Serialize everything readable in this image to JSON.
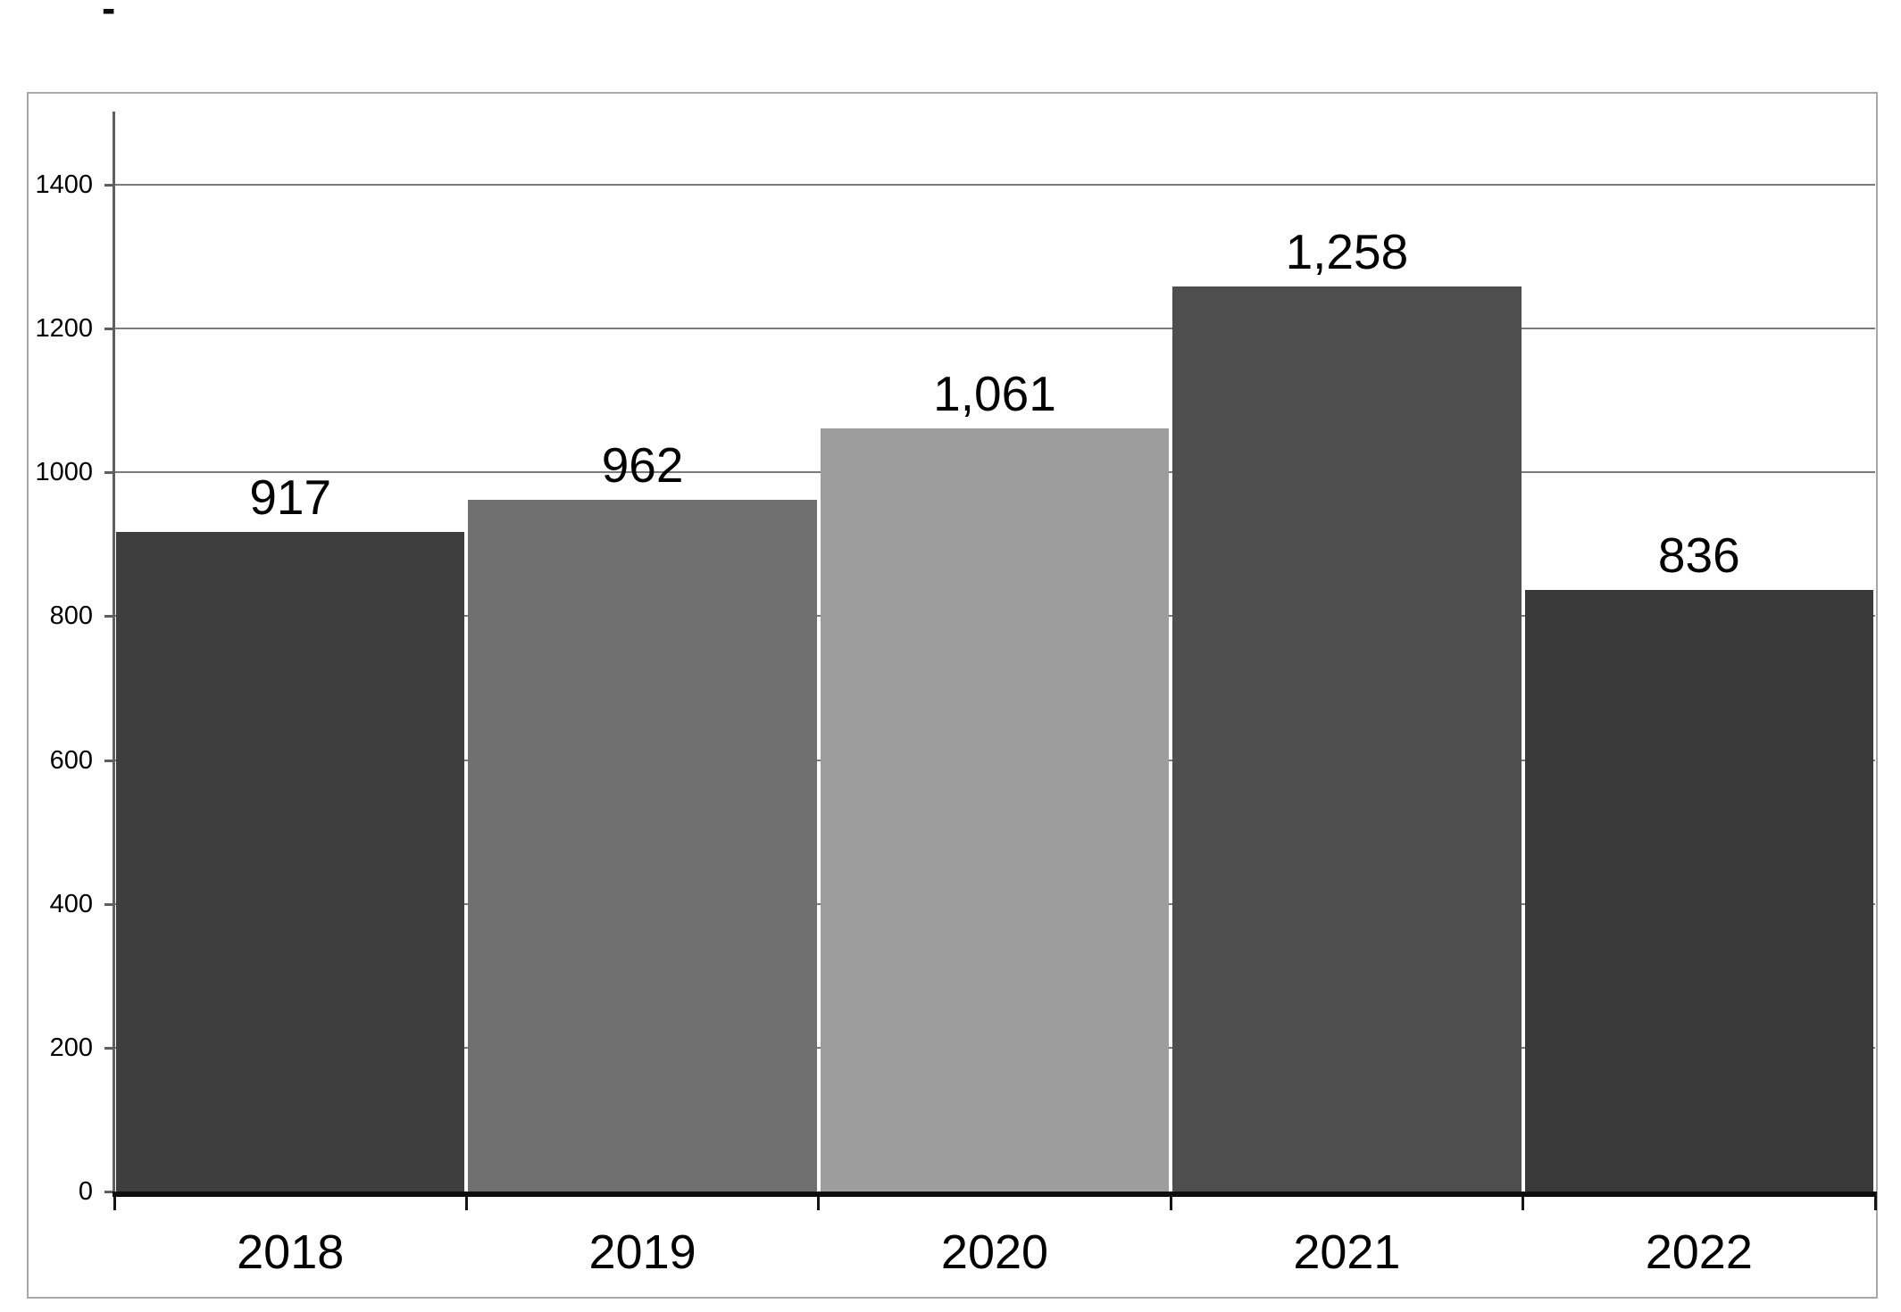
{
  "stray_mark": "-",
  "chart_data": {
    "type": "bar",
    "title": "",
    "xlabel": "",
    "ylabel": "",
    "categories": [
      "2018",
      "2019",
      "2020",
      "2021",
      "2022"
    ],
    "values": [
      917,
      962,
      1061,
      1258,
      836
    ],
    "value_labels": [
      "917",
      "962",
      "1,061",
      "1,258",
      "836"
    ],
    "bar_colors": [
      "#3e3e3e",
      "#707070",
      "#9d9d9d",
      "#4e4e4e",
      "#393939"
    ],
    "y_ticks": [
      0,
      200,
      400,
      600,
      800,
      1000,
      1200,
      1400
    ],
    "ylim": [
      0,
      1500
    ],
    "grid": true,
    "legend_position": "none",
    "style": {
      "gridline_color": "#7a7a7a",
      "axis_color": "#5f5f5f",
      "baseline_color": "#0d0d0d",
      "tick_color": "#141414",
      "frame_border_color": "#a9a9a9",
      "label_text_color": "#000000",
      "bar_separator_color": "#ffffff",
      "background_color": "#ffffff"
    }
  }
}
